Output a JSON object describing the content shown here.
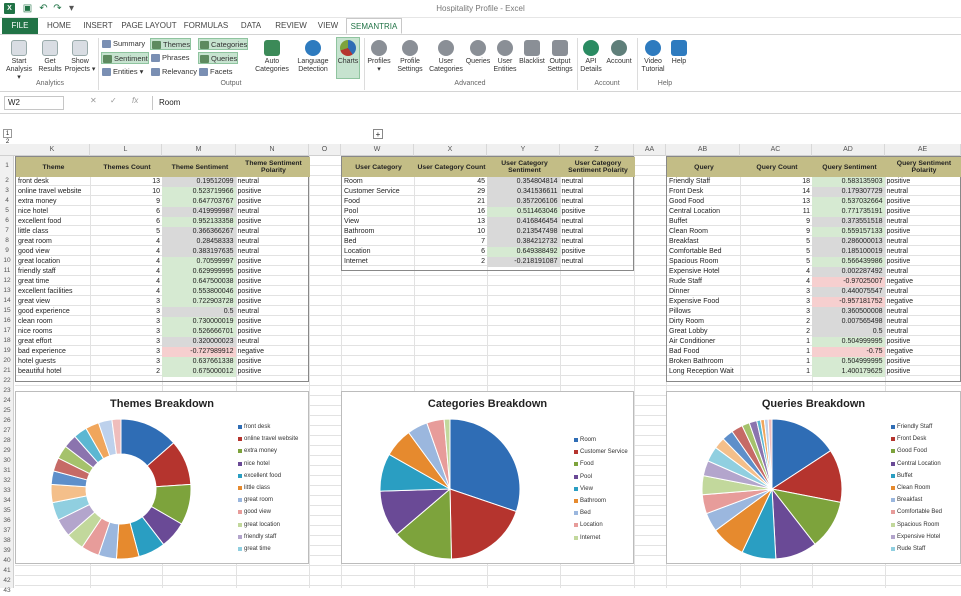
{
  "window": {
    "title": "Hospitality Profile - Excel"
  },
  "tabs": [
    "FILE",
    "HOME",
    "INSERT",
    "PAGE LAYOUT",
    "FORMULAS",
    "DATA",
    "REVIEW",
    "VIEW",
    "SEMANTRIA"
  ],
  "ribbon": {
    "analytics": {
      "start": "Start Analysis ▾",
      "get": "Get Results",
      "show": "Show Projects ▾",
      "label": "Analytics"
    },
    "output": {
      "summary": "Summary",
      "themes": "Themes",
      "categories": "Categories",
      "sentiment": "Sentiment",
      "phrases": "Phrases",
      "queries": "Queries",
      "entities": "Entities ▾",
      "relevancy": "Relevancy",
      "facets": "Facets",
      "auto": "Auto Categories",
      "lang": "Language Detection",
      "charts": "Charts",
      "label": "Output"
    },
    "advanced": {
      "profiles": "Profiles ▾",
      "profset": "Profile Settings",
      "usercat": "User Categories",
      "queries": "Queries",
      "userent": "User Entities",
      "blacklist": "Blacklist",
      "outset": "Output Settings",
      "label": "Advanced"
    },
    "account": {
      "api": "API Details",
      "account": "Account",
      "label": "Account"
    },
    "help": {
      "video": "Video Tutorial",
      "help": "Help",
      "label": "Help"
    }
  },
  "formula": {
    "cell": "W2",
    "fx": "fx",
    "value": "Room"
  },
  "columns": {
    "K": "K",
    "L": "L",
    "M": "M",
    "N": "N",
    "O": "O",
    "W": "W",
    "X": "X",
    "Y": "Y",
    "Z": "Z",
    "AA": "AA",
    "AB": "AB",
    "AC": "AC",
    "AD": "AD",
    "AE": "AE"
  },
  "outline": {
    "l1": "1",
    "l2": "2",
    "plus": "+"
  },
  "themes_table": {
    "headers": [
      "Theme",
      "Themes Count",
      "Theme Sentiment",
      "Theme Sentiment Polarity"
    ],
    "rows": [
      [
        "front desk",
        "13",
        "0.19512099",
        "neutral"
      ],
      [
        "online travel website",
        "10",
        "0.523719966",
        "positive"
      ],
      [
        "extra money",
        "9",
        "0.647703767",
        "positive"
      ],
      [
        "nice hotel",
        "6",
        "0.419999987",
        "neutral"
      ],
      [
        "excellent food",
        "6",
        "0.952133358",
        "positive"
      ],
      [
        "little class",
        "5",
        "0.366366267",
        "neutral"
      ],
      [
        "great room",
        "4",
        "0.28458333",
        "neutral"
      ],
      [
        "good view",
        "4",
        "0.383197635",
        "neutral"
      ],
      [
        "great location",
        "4",
        "0.70599997",
        "positive"
      ],
      [
        "friendly staff",
        "4",
        "0.629999995",
        "positive"
      ],
      [
        "great time",
        "4",
        "0.647500038",
        "positive"
      ],
      [
        "excellent facilities",
        "4",
        "0.553800046",
        "positive"
      ],
      [
        "great view",
        "3",
        "0.722903728",
        "positive"
      ],
      [
        "good experience",
        "3",
        "0.5",
        "neutral"
      ],
      [
        "clean room",
        "3",
        "0.730000019",
        "positive"
      ],
      [
        "nice rooms",
        "3",
        "0.526666701",
        "positive"
      ],
      [
        "great effort",
        "3",
        "0.320000023",
        "neutral"
      ],
      [
        "bad experience",
        "3",
        "-0.727989912",
        "negative"
      ],
      [
        "hotel guests",
        "3",
        "0.637661338",
        "positive"
      ],
      [
        "beautiful hotel",
        "2",
        "0.675000012",
        "positive"
      ]
    ]
  },
  "categories_table": {
    "headers": [
      "User Category",
      "User Category Count",
      "User Category Sentiment",
      "User Category Sentiment Polarity"
    ],
    "rows": [
      [
        "Room",
        "45",
        "0.354804814",
        "neutral"
      ],
      [
        "Customer Service",
        "29",
        "0.341536611",
        "neutral"
      ],
      [
        "Food",
        "21",
        "0.357206106",
        "neutral"
      ],
      [
        "Pool",
        "16",
        "0.511463046",
        "positive"
      ],
      [
        "View",
        "13",
        "0.416846454",
        "neutral"
      ],
      [
        "Bathroom",
        "10",
        "0.213547498",
        "neutral"
      ],
      [
        "Bed",
        "7",
        "0.384212732",
        "neutral"
      ],
      [
        "Location",
        "6",
        "0.649388492",
        "positive"
      ],
      [
        "Internet",
        "2",
        "-0.218191087",
        "neutral"
      ]
    ]
  },
  "queries_table": {
    "headers": [
      "Query",
      "Query Count",
      "Query Sentiment",
      "Query Sentiment Polarity"
    ],
    "rows": [
      [
        "Friendly Staff",
        "18",
        "0.583135903",
        "positive"
      ],
      [
        "Front Desk",
        "14",
        "0.179307729",
        "neutral"
      ],
      [
        "Good Food",
        "13",
        "0.537032664",
        "positive"
      ],
      [
        "Central Location",
        "11",
        "0.771735191",
        "positive"
      ],
      [
        "Buffet",
        "9",
        "0.373551518",
        "neutral"
      ],
      [
        "Clean Room",
        "9",
        "0.559157133",
        "positive"
      ],
      [
        "Breakfast",
        "5",
        "0.286000013",
        "neutral"
      ],
      [
        "Comfortable Bed",
        "5",
        "0.185100019",
        "neutral"
      ],
      [
        "Spacious Room",
        "5",
        "0.566439986",
        "positive"
      ],
      [
        "Expensive Hotel",
        "4",
        "0.002287492",
        "neutral"
      ],
      [
        "Rude Staff",
        "4",
        "-0.97025007",
        "negative"
      ],
      [
        "Dinner",
        "3",
        "0.440075547",
        "neutral"
      ],
      [
        "Expensive Food",
        "3",
        "-0.957181752",
        "negative"
      ],
      [
        "Pillows",
        "3",
        "0.360500008",
        "neutral"
      ],
      [
        "Dirty Room",
        "2",
        "0.007565498",
        "neutral"
      ],
      [
        "Great Lobby",
        "2",
        "0.5",
        "neutral"
      ],
      [
        "Air Conditioner",
        "1",
        "0.504999995",
        "positive"
      ],
      [
        "Bad Food",
        "1",
        "-0.75",
        "negative"
      ],
      [
        "Broken Bathroom",
        "1",
        "0.504999995",
        "positive"
      ],
      [
        "Long Reception Wait",
        "1",
        "1.400179625",
        "positive"
      ]
    ]
  },
  "colors": [
    "#2f6db5",
    "#b5342e",
    "#7da33c",
    "#6a4a96",
    "#2a9ec2",
    "#e68a2e",
    "#9bb7de",
    "#e79c9a",
    "#c2d89c",
    "#b3a5cc",
    "#90cfe0",
    "#f4bf8a",
    "#5e8fca",
    "#c66a66",
    "#a5c26c",
    "#8b74ae",
    "#5cb7d2",
    "#f0a65c",
    "#bdd1ec",
    "#efbdbc"
  ],
  "chart_data": [
    {
      "type": "pie",
      "title": "Themes Breakdown",
      "donut": true,
      "categories": [
        "front desk",
        "online travel website",
        "extra money",
        "nice hotel",
        "excellent food",
        "little class",
        "great room",
        "good view",
        "great location",
        "friendly staff",
        "great time",
        "excellent facilities",
        "great view",
        "good experience",
        "clean room",
        "nice rooms",
        "great effort",
        "bad experience",
        "hotel guests",
        "beautiful hotel"
      ],
      "values": [
        13,
        10,
        9,
        6,
        6,
        5,
        4,
        4,
        4,
        4,
        4,
        4,
        3,
        3,
        3,
        3,
        3,
        3,
        3,
        2
      ],
      "legend": [
        "front desk",
        "online travel website",
        "extra money",
        "nice hotel",
        "excellent food",
        "little class",
        "great room",
        "good view",
        "great location",
        "friendly staff",
        "great time"
      ]
    },
    {
      "type": "pie",
      "title": "Categories Breakdown",
      "donut": false,
      "categories": [
        "Room",
        "Customer Service",
        "Food",
        "Pool",
        "View",
        "Bathroom",
        "Bed",
        "Location",
        "Internet"
      ],
      "values": [
        45,
        29,
        21,
        16,
        13,
        10,
        7,
        6,
        2
      ],
      "legend": [
        "Room",
        "Customer Service",
        "Food",
        "Pool",
        "View",
        "Bathroom",
        "Bed",
        "Location",
        "Internet"
      ]
    },
    {
      "type": "pie",
      "title": "Queries Breakdown",
      "donut": false,
      "categories": [
        "Friendly Staff",
        "Front Desk",
        "Good Food",
        "Central Location",
        "Buffet",
        "Clean Room",
        "Breakfast",
        "Comfortable Bed",
        "Spacious Room",
        "Expensive Hotel",
        "Rude Staff",
        "Dinner",
        "Expensive Food",
        "Pillows",
        "Dirty Room",
        "Great Lobby",
        "Air Conditioner",
        "Bad Food",
        "Broken Bathroom",
        "Long Reception Wait"
      ],
      "values": [
        18,
        14,
        13,
        11,
        9,
        9,
        5,
        5,
        5,
        4,
        4,
        3,
        3,
        3,
        2,
        2,
        1,
        1,
        1,
        1
      ],
      "legend": [
        "Friendly Staff",
        "Front Desk",
        "Good Food",
        "Central Location",
        "Buffet",
        "Clean Room",
        "Breakfast",
        "Comfortable Bed",
        "Spacious Room",
        "Expensive Hotel",
        "Rude Staff"
      ]
    }
  ]
}
